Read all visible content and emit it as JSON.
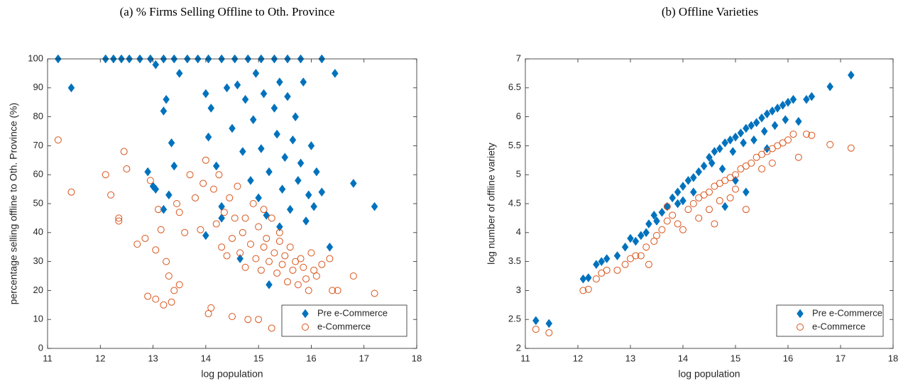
{
  "chart_data": [
    {
      "type": "scatter",
      "title": "(a) % Firms Selling Offline to Oth. Province",
      "xlabel": "log population",
      "ylabel": "percentage selling offline to Oth. Province (%)",
      "xlim": [
        11,
        18
      ],
      "xticks": [
        11,
        12,
        13,
        14,
        15,
        16,
        17,
        18
      ],
      "ylim": [
        0,
        100
      ],
      "yticks": [
        0,
        10,
        20,
        30,
        40,
        50,
        60,
        70,
        80,
        90,
        100
      ],
      "legend": "southeast",
      "box": true,
      "series": [
        {
          "name": "Pre e-Commerce",
          "color": "#0072bd",
          "marker": "diamond",
          "x": [
            11.2,
            11.45,
            12.1,
            12.25,
            12.4,
            12.55,
            12.75,
            12.95,
            13.05,
            13.2,
            13.4,
            13.65,
            13.85,
            14.05,
            14.3,
            14.55,
            14.8,
            15.05,
            15.3,
            15.55,
            15.8,
            16.2,
            16.45,
            16.8,
            17.2,
            12.9,
            13.0,
            13.2,
            13.25,
            13.35,
            13.4,
            13.5,
            13.3,
            13.2,
            14.0,
            14.05,
            14.1,
            14.2,
            14.3,
            14.4,
            14.5,
            14.6,
            14.7,
            14.75,
            14.85,
            14.9,
            14.95,
            15.0,
            15.05,
            15.1,
            15.15,
            15.2,
            15.3,
            15.35,
            15.4,
            15.45,
            15.5,
            15.55,
            15.6,
            15.65,
            15.7,
            15.75,
            15.8,
            15.85,
            15.9,
            15.95,
            16.0,
            16.05,
            16.1,
            16.2,
            16.35,
            15.2,
            15.4,
            14.65,
            14.0,
            14.3,
            13.05
          ],
          "values": [
            100,
            90,
            100,
            100,
            100,
            100,
            100,
            100,
            98,
            100,
            100,
            100,
            100,
            100,
            100,
            100,
            100,
            100,
            100,
            100,
            100,
            100,
            95,
            57,
            49,
            61,
            56,
            82,
            86,
            71,
            63,
            95,
            53,
            48,
            88,
            73,
            83,
            63,
            49,
            90,
            76,
            91,
            68,
            86,
            58,
            79,
            95,
            52,
            69,
            88,
            46,
            61,
            83,
            74,
            92,
            55,
            66,
            87,
            48,
            72,
            80,
            58,
            64,
            92,
            44,
            53,
            70,
            49,
            61,
            54,
            35,
            22,
            42,
            31,
            39,
            45,
            55
          ]
        },
        {
          "name": "e-Commerce",
          "color": "#d95319",
          "marker": "circle",
          "x": [
            11.2,
            11.45,
            12.1,
            12.2,
            12.35,
            12.35,
            12.45,
            12.5,
            12.7,
            12.85,
            12.9,
            12.95,
            13.05,
            13.05,
            13.1,
            13.15,
            13.2,
            13.25,
            13.3,
            13.35,
            13.4,
            13.45,
            13.5,
            13.5,
            13.6,
            13.7,
            13.8,
            13.9,
            13.95,
            14.0,
            14.05,
            14.1,
            14.15,
            14.2,
            14.25,
            14.3,
            14.35,
            14.4,
            14.45,
            14.5,
            14.5,
            14.55,
            14.6,
            14.65,
            14.7,
            14.75,
            14.8,
            14.85,
            14.9,
            14.95,
            15.0,
            15.0,
            15.05,
            15.1,
            15.15,
            15.2,
            15.25,
            15.25,
            15.3,
            15.35,
            15.4,
            15.45,
            15.5,
            15.55,
            15.6,
            15.65,
            15.7,
            15.75,
            15.8,
            15.85,
            15.9,
            15.95,
            16.0,
            16.05,
            16.1,
            16.2,
            16.35,
            16.4,
            16.5,
            16.8,
            17.2,
            14.75,
            15.1,
            15.4
          ],
          "values": [
            72,
            54,
            60,
            53,
            45,
            44,
            68,
            62,
            36,
            38,
            18,
            58,
            17,
            34,
            48,
            41,
            15,
            30,
            25,
            16,
            20,
            50,
            47,
            22,
            40,
            60,
            52,
            41,
            57,
            65,
            12,
            14,
            55,
            43,
            60,
            35,
            47,
            32,
            52,
            11,
            38,
            45,
            56,
            33,
            40,
            28,
            10,
            36,
            50,
            31,
            10,
            42,
            27,
            35,
            38,
            30,
            7,
            45,
            33,
            26,
            37,
            29,
            32,
            23,
            35,
            27,
            30,
            22,
            31,
            28,
            24,
            20,
            33,
            27,
            25,
            29,
            31,
            20,
            20,
            25,
            19,
            45,
            48,
            40
          ]
        }
      ]
    },
    {
      "type": "scatter",
      "title": "(b) Offline Varieties",
      "xlabel": "log population",
      "ylabel": "log number of offline variety",
      "xlim": [
        11,
        18
      ],
      "xticks": [
        11,
        12,
        13,
        14,
        15,
        16,
        17,
        18
      ],
      "ylim": [
        2,
        7
      ],
      "yticks": [
        2,
        2.5,
        3,
        3.5,
        4,
        4.5,
        5,
        5.5,
        6,
        6.5,
        7
      ],
      "legend": "southeast",
      "box": true,
      "series": [
        {
          "name": "Pre e-Commerce",
          "color": "#0072bd",
          "marker": "diamond",
          "x": [
            11.2,
            11.45,
            12.1,
            12.2,
            12.35,
            12.45,
            12.55,
            12.75,
            12.9,
            13.0,
            13.1,
            13.2,
            13.3,
            13.35,
            13.45,
            13.5,
            13.6,
            13.7,
            13.8,
            13.9,
            14.0,
            14.1,
            14.2,
            14.3,
            14.4,
            14.5,
            14.6,
            14.7,
            14.8,
            14.9,
            15.0,
            15.1,
            15.2,
            15.3,
            15.4,
            15.5,
            15.6,
            15.7,
            15.8,
            15.9,
            16.0,
            16.1,
            16.2,
            16.35,
            16.45,
            16.8,
            17.2,
            14.55,
            14.75,
            14.95,
            15.15,
            15.35,
            15.55,
            15.75,
            15.95,
            15.2,
            14.8,
            15.0,
            14.2,
            13.9,
            15.6,
            14.0
          ],
          "values": [
            2.48,
            2.43,
            3.2,
            3.22,
            3.45,
            3.5,
            3.55,
            3.6,
            3.75,
            3.9,
            3.85,
            3.95,
            4.0,
            4.15,
            4.3,
            4.2,
            4.35,
            4.45,
            4.6,
            4.7,
            4.8,
            4.9,
            4.95,
            5.05,
            5.15,
            5.3,
            5.4,
            5.45,
            5.55,
            5.6,
            5.65,
            5.72,
            5.8,
            5.85,
            5.9,
            5.98,
            6.05,
            6.1,
            6.15,
            6.2,
            6.25,
            6.3,
            5.92,
            6.3,
            6.35,
            6.52,
            6.72,
            5.2,
            5.1,
            5.4,
            5.55,
            5.6,
            5.75,
            5.85,
            5.95,
            4.7,
            4.45,
            4.9,
            4.7,
            4.5,
            5.45,
            4.55
          ]
        },
        {
          "name": "e-Commerce",
          "color": "#d95319",
          "marker": "circle",
          "x": [
            11.2,
            11.45,
            12.1,
            12.2,
            12.35,
            12.45,
            12.55,
            12.75,
            12.9,
            13.0,
            13.1,
            13.2,
            13.3,
            13.35,
            13.45,
            13.5,
            13.6,
            13.7,
            13.8,
            13.9,
            14.0,
            14.1,
            14.2,
            14.3,
            14.4,
            14.5,
            14.6,
            14.7,
            14.8,
            14.9,
            15.0,
            15.1,
            15.2,
            15.3,
            15.4,
            15.5,
            15.6,
            15.7,
            15.8,
            15.9,
            16.0,
            16.1,
            16.2,
            16.35,
            16.45,
            16.8,
            17.2,
            14.5,
            14.7,
            14.9,
            15.2,
            15.5,
            15.0,
            14.3,
            15.7,
            14.6,
            13.7
          ],
          "values": [
            2.33,
            2.27,
            3.0,
            3.02,
            3.2,
            3.3,
            3.35,
            3.35,
            3.45,
            3.55,
            3.6,
            3.6,
            3.75,
            3.45,
            3.85,
            3.95,
            4.05,
            4.2,
            4.3,
            4.15,
            4.05,
            4.4,
            4.5,
            4.6,
            4.65,
            4.7,
            4.8,
            4.85,
            4.9,
            4.95,
            5.0,
            5.1,
            5.15,
            5.2,
            5.3,
            5.35,
            5.4,
            5.45,
            5.5,
            5.55,
            5.6,
            5.7,
            5.3,
            5.7,
            5.68,
            5.52,
            5.46,
            4.4,
            4.55,
            4.6,
            4.4,
            5.1,
            4.75,
            4.25,
            5.2,
            4.15,
            4.45
          ]
        }
      ]
    }
  ]
}
